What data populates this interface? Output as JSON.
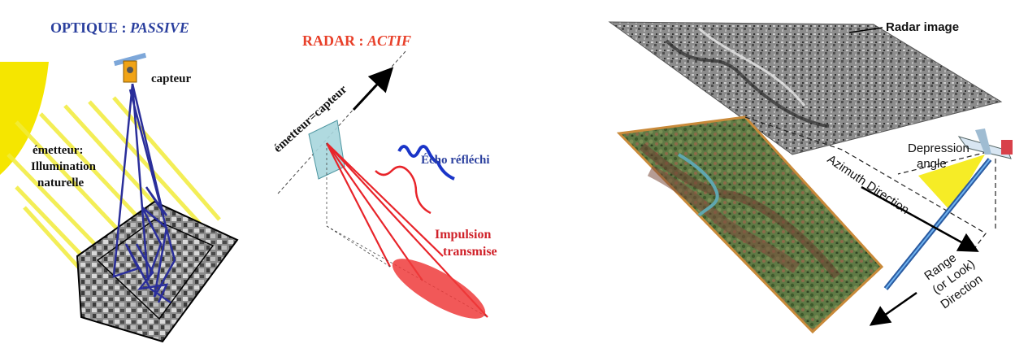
{
  "optique": {
    "title_prefix": "OPTIQUE : ",
    "title_mode": "PASSIVE",
    "sensor_label": "capteur",
    "emitter_line1": "émetteur:",
    "emitter_line2": "Illumination",
    "emitter_line3": "naturelle"
  },
  "radar": {
    "title_prefix": "RADAR : ",
    "title_mode": "ACTIF",
    "emitter_label": "émetteur=capteur",
    "echo_label": "Écho réfléchi",
    "pulse_line1": "Impulsion",
    "pulse_line2": "transmise"
  },
  "sar": {
    "radar_image_label": "Radar image",
    "depression_line1": "Depression",
    "depression_line2": "angle",
    "azimuth_label": "Azimuth Direction",
    "range_line1": "Range",
    "range_line2": "(or Look)",
    "range_line3": "Direction"
  },
  "colors": {
    "optique_title": "#2a3f9e",
    "radar_title": "#e8402a",
    "sun": "#f5e600",
    "beam_red": "#e8242a",
    "echo_blue": "#1a35c8",
    "path_blue": "#2a2e9a"
  }
}
